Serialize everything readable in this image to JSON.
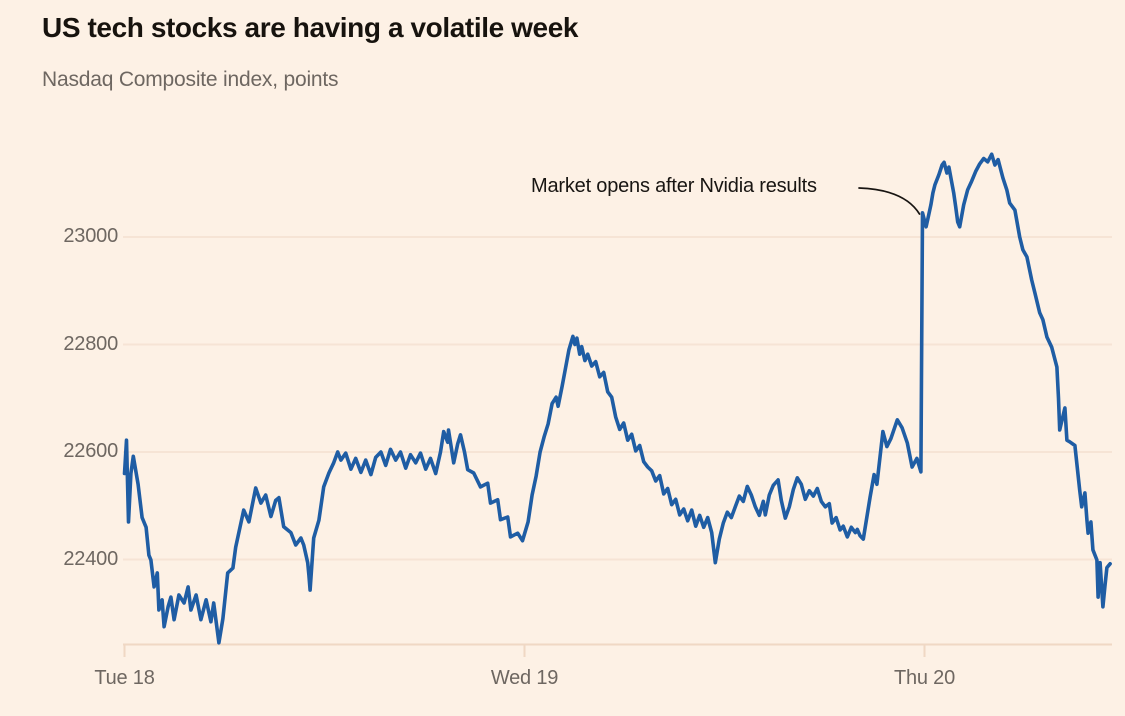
{
  "chart_data": {
    "type": "line",
    "title": "US tech stocks are having a volatile week",
    "subtitle": "Nasdaq Composite index, points",
    "xlabel": "",
    "ylabel": "",
    "x_axis": {
      "unit": "days (t=0 at Tue 18 tick, 1 day per unit)",
      "ticks": [
        {
          "t": 0,
          "label": "Tue 18"
        },
        {
          "t": 1,
          "label": "Wed 19"
        },
        {
          "t": 2,
          "label": "Thu 20"
        }
      ],
      "grid": false
    },
    "y_axis": {
      "ticks": [
        23000,
        22800,
        22600,
        22400
      ],
      "range": [
        22240,
        23220
      ],
      "grid": true
    },
    "legend": "none",
    "annotation": {
      "text": "Market opens after Nvidia results",
      "target": {
        "t": 1.995,
        "value": 23045
      }
    },
    "colors": {
      "line": "#1f5da4",
      "grid": "#f6e4d5",
      "axis": "#f0d8c4",
      "tick_text": "#6e6761",
      "title_text": "#17130e",
      "annotation_text": "#181512",
      "background": "#fdf1e5"
    },
    "series": [
      {
        "name": "Nasdaq Composite index",
        "points": [
          [
            0,
            22560
          ],
          [
            0.005,
            22622
          ],
          [
            0.01,
            22470
          ],
          [
            0.016,
            22560
          ],
          [
            0.022,
            22592
          ],
          [
            0.034,
            22540
          ],
          [
            0.044,
            22478
          ],
          [
            0.054,
            22460
          ],
          [
            0.061,
            22408
          ],
          [
            0.066,
            22399
          ],
          [
            0.074,
            22349
          ],
          [
            0.082,
            22375
          ],
          [
            0.086,
            22306
          ],
          [
            0.094,
            22325
          ],
          [
            0.099,
            22275
          ],
          [
            0.109,
            22312
          ],
          [
            0.116,
            22330
          ],
          [
            0.124,
            22288
          ],
          [
            0.136,
            22334
          ],
          [
            0.149,
            22319
          ],
          [
            0.159,
            22349
          ],
          [
            0.166,
            22306
          ],
          [
            0.179,
            22334
          ],
          [
            0.191,
            22288
          ],
          [
            0.204,
            22325
          ],
          [
            0.216,
            22284
          ],
          [
            0.223,
            22319
          ],
          [
            0.236,
            22245
          ],
          [
            0.246,
            22290
          ],
          [
            0.258,
            22375
          ],
          [
            0.271,
            22384
          ],
          [
            0.278,
            22423
          ],
          [
            0.298,
            22492
          ],
          [
            0.311,
            22470
          ],
          [
            0.328,
            22533
          ],
          [
            0.341,
            22505
          ],
          [
            0.353,
            22520
          ],
          [
            0.366,
            22480
          ],
          [
            0.378,
            22510
          ],
          [
            0.386,
            22515
          ],
          [
            0.398,
            22461
          ],
          [
            0.416,
            22450
          ],
          [
            0.428,
            22427
          ],
          [
            0.441,
            22440
          ],
          [
            0.448,
            22427
          ],
          [
            0.458,
            22394
          ],
          [
            0.461,
            22371
          ],
          [
            0.464,
            22343
          ],
          [
            0.473,
            22440
          ],
          [
            0.486,
            22473
          ],
          [
            0.498,
            22535
          ],
          [
            0.511,
            22561
          ],
          [
            0.523,
            22580
          ],
          [
            0.533,
            22600
          ],
          [
            0.541,
            22585
          ],
          [
            0.553,
            22598
          ],
          [
            0.566,
            22568
          ],
          [
            0.578,
            22588
          ],
          [
            0.591,
            22562
          ],
          [
            0.603,
            22585
          ],
          [
            0.616,
            22558
          ],
          [
            0.628,
            22590
          ],
          [
            0.641,
            22600
          ],
          [
            0.653,
            22575
          ],
          [
            0.665,
            22605
          ],
          [
            0.678,
            22585
          ],
          [
            0.69,
            22600
          ],
          [
            0.703,
            22570
          ],
          [
            0.715,
            22595
          ],
          [
            0.728,
            22580
          ],
          [
            0.74,
            22598
          ],
          [
            0.753,
            22568
          ],
          [
            0.765,
            22588
          ],
          [
            0.778,
            22560
          ],
          [
            0.79,
            22600
          ],
          [
            0.798,
            22638
          ],
          [
            0.808,
            22618
          ],
          [
            0.81,
            22641
          ],
          [
            0.823,
            22580
          ],
          [
            0.833,
            22615
          ],
          [
            0.84,
            22632
          ],
          [
            0.85,
            22600
          ],
          [
            0.858,
            22567
          ],
          [
            0.873,
            22561
          ],
          [
            0.89,
            22535
          ],
          [
            0.908,
            22542
          ],
          [
            0.915,
            22505
          ],
          [
            0.933,
            22511
          ],
          [
            0.94,
            22474
          ],
          [
            0.958,
            22479
          ],
          [
            0.965,
            22442
          ],
          [
            0.983,
            22449
          ],
          [
            0.995,
            22435
          ],
          [
            1.009,
            22470
          ],
          [
            1.019,
            22520
          ],
          [
            1.029,
            22555
          ],
          [
            1.039,
            22600
          ],
          [
            1.049,
            22628
          ],
          [
            1.059,
            22652
          ],
          [
            1.069,
            22690
          ],
          [
            1.079,
            22702
          ],
          [
            1.084,
            22685
          ],
          [
            1.094,
            22722
          ],
          [
            1.101,
            22750
          ],
          [
            1.111,
            22790
          ],
          [
            1.121,
            22815
          ],
          [
            1.126,
            22800
          ],
          [
            1.131,
            22812
          ],
          [
            1.138,
            22782
          ],
          [
            1.143,
            22796
          ],
          [
            1.151,
            22770
          ],
          [
            1.158,
            22782
          ],
          [
            1.168,
            22760
          ],
          [
            1.178,
            22768
          ],
          [
            1.188,
            22740
          ],
          [
            1.198,
            22748
          ],
          [
            1.208,
            22712
          ],
          [
            1.218,
            22702
          ],
          [
            1.228,
            22665
          ],
          [
            1.238,
            22642
          ],
          [
            1.248,
            22654
          ],
          [
            1.258,
            22622
          ],
          [
            1.268,
            22633
          ],
          [
            1.278,
            22602
          ],
          [
            1.288,
            22612
          ],
          [
            1.298,
            22582
          ],
          [
            1.308,
            22572
          ],
          [
            1.318,
            22565
          ],
          [
            1.328,
            22546
          ],
          [
            1.338,
            22556
          ],
          [
            1.348,
            22522
          ],
          [
            1.358,
            22532
          ],
          [
            1.368,
            22502
          ],
          [
            1.378,
            22512
          ],
          [
            1.388,
            22483
          ],
          [
            1.398,
            22494
          ],
          [
            1.408,
            22472
          ],
          [
            1.418,
            22492
          ],
          [
            1.428,
            22462
          ],
          [
            1.438,
            22482
          ],
          [
            1.448,
            22460
          ],
          [
            1.458,
            22478
          ],
          [
            1.468,
            22450
          ],
          [
            1.477,
            22394
          ],
          [
            1.487,
            22438
          ],
          [
            1.497,
            22468
          ],
          [
            1.507,
            22488
          ],
          [
            1.517,
            22478
          ],
          [
            1.527,
            22498
          ],
          [
            1.537,
            22518
          ],
          [
            1.547,
            22508
          ],
          [
            1.557,
            22536
          ],
          [
            1.567,
            22520
          ],
          [
            1.577,
            22498
          ],
          [
            1.587,
            22482
          ],
          [
            1.597,
            22508
          ],
          [
            1.602,
            22483
          ],
          [
            1.612,
            22520
          ],
          [
            1.622,
            22538
          ],
          [
            1.634,
            22548
          ],
          [
            1.642,
            22510
          ],
          [
            1.652,
            22477
          ],
          [
            1.662,
            22498
          ],
          [
            1.672,
            22530
          ],
          [
            1.682,
            22552
          ],
          [
            1.692,
            22540
          ],
          [
            1.702,
            22512
          ],
          [
            1.712,
            22528
          ],
          [
            1.722,
            22518
          ],
          [
            1.732,
            22532
          ],
          [
            1.742,
            22508
          ],
          [
            1.752,
            22498
          ],
          [
            1.762,
            22504
          ],
          [
            1.769,
            22468
          ],
          [
            1.779,
            22478
          ],
          [
            1.789,
            22455
          ],
          [
            1.797,
            22462
          ],
          [
            1.807,
            22442
          ],
          [
            1.817,
            22460
          ],
          [
            1.827,
            22450
          ],
          [
            1.832,
            22456
          ],
          [
            1.839,
            22444
          ],
          [
            1.847,
            22438
          ],
          [
            1.864,
            22516
          ],
          [
            1.874,
            22558
          ],
          [
            1.881,
            22540
          ],
          [
            1.896,
            22638
          ],
          [
            1.906,
            22610
          ],
          [
            1.916,
            22625
          ],
          [
            1.932,
            22660
          ],
          [
            1.944,
            22645
          ],
          [
            1.957,
            22617
          ],
          [
            1.969,
            22572
          ],
          [
            1.981,
            22588
          ],
          [
            1.991,
            22563
          ],
          [
            1.995,
            23045
          ],
          [
            2.004,
            23019
          ],
          [
            2.009,
            23036
          ],
          [
            2.016,
            23060
          ],
          [
            2.021,
            23082
          ],
          [
            2.026,
            23097
          ],
          [
            2.036,
            23116
          ],
          [
            2.044,
            23134
          ],
          [
            2.049,
            23139
          ],
          [
            2.056,
            23119
          ],
          [
            2.061,
            23130
          ],
          [
            2.068,
            23102
          ],
          [
            2.073,
            23082
          ],
          [
            2.078,
            23056
          ],
          [
            2.083,
            23028
          ],
          [
            2.088,
            23019
          ],
          [
            2.098,
            23060
          ],
          [
            2.108,
            23088
          ],
          [
            2.118,
            23104
          ],
          [
            2.128,
            23122
          ],
          [
            2.138,
            23136
          ],
          [
            2.148,
            23146
          ],
          [
            2.158,
            23140
          ],
          [
            2.168,
            23154
          ],
          [
            2.176,
            23134
          ],
          [
            2.184,
            23144
          ],
          [
            2.196,
            23110
          ],
          [
            2.206,
            23087
          ],
          [
            2.213,
            23063
          ],
          [
            2.226,
            23050
          ],
          [
            2.238,
            23000
          ],
          [
            2.246,
            22976
          ],
          [
            2.256,
            22963
          ],
          [
            2.268,
            22920
          ],
          [
            2.276,
            22896
          ],
          [
            2.288,
            22859
          ],
          [
            2.296,
            22846
          ],
          [
            2.306,
            22814
          ],
          [
            2.318,
            22795
          ],
          [
            2.331,
            22758
          ],
          [
            2.335,
            22700
          ],
          [
            2.338,
            22641
          ],
          [
            2.351,
            22682
          ],
          [
            2.356,
            22622
          ],
          [
            2.363,
            22619
          ],
          [
            2.376,
            22612
          ],
          [
            2.388,
            22529
          ],
          [
            2.393,
            22498
          ],
          [
            2.401,
            22524
          ],
          [
            2.406,
            22474
          ],
          [
            2.409,
            22449
          ],
          [
            2.416,
            22470
          ],
          [
            2.421,
            22418
          ],
          [
            2.431,
            22399
          ],
          [
            2.434,
            22330
          ],
          [
            2.439,
            22394
          ],
          [
            2.446,
            22312
          ],
          [
            2.451,
            22350
          ],
          [
            2.456,
            22385
          ],
          [
            2.464,
            22392
          ]
        ]
      }
    ]
  }
}
